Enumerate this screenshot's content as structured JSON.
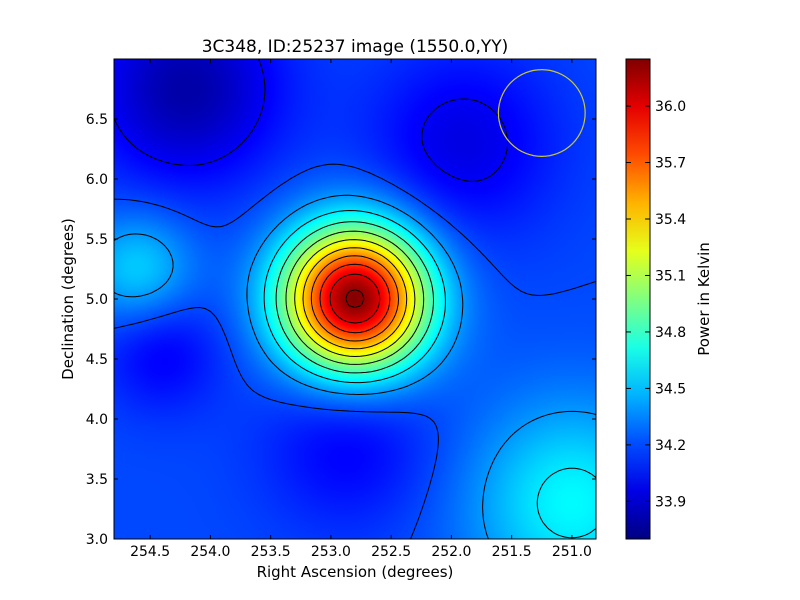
{
  "chart_data": {
    "type": "heatmap",
    "title": "3C348, ID:25237 image (1550.0,YY)",
    "xlabel": "Right Ascension (degrees)",
    "ylabel": "Declination (degrees)",
    "xlim": [
      254.8,
      250.8
    ],
    "ylim": [
      3.0,
      7.0
    ],
    "x_ticks": [
      254.5,
      254.0,
      253.5,
      253.0,
      252.5,
      252.0,
      251.5,
      251.0
    ],
    "x_tick_labels": [
      "254.5",
      "254.0",
      "253.5",
      "253.0",
      "252.5",
      "252.0",
      "251.5",
      "251.0"
    ],
    "y_ticks": [
      3.0,
      3.5,
      4.0,
      4.5,
      5.0,
      5.5,
      6.0,
      6.5
    ],
    "y_tick_labels": [
      "3.0",
      "3.5",
      "4.0",
      "4.5",
      "5.0",
      "5.5",
      "6.0",
      "6.5"
    ],
    "colorbar": {
      "label": "Power in Kelvin",
      "colormap": "jet",
      "range": [
        33.7,
        36.25
      ],
      "ticks": [
        33.9,
        34.2,
        34.5,
        34.8,
        35.1,
        35.4,
        35.7,
        36.0
      ],
      "tick_labels": [
        "33.9",
        "34.2",
        "34.5",
        "34.8",
        "35.1",
        "35.4",
        "35.7",
        "36.0"
      ]
    },
    "peak": {
      "ra": 252.8,
      "dec": 5.0,
      "value": 36.25
    },
    "features": [
      {
        "ra": 254.6,
        "dec": 5.25,
        "value": 34.55
      },
      {
        "ra": 252.85,
        "dec": 3.8,
        "value": 34.0
      },
      {
        "ra": 254.2,
        "dec": 6.75,
        "value": 33.8
      },
      {
        "ra": 251.9,
        "dec": 6.3,
        "value": 33.95
      },
      {
        "ra": 254.4,
        "dec": 4.55,
        "value": 34.0
      },
      {
        "ra": 251.0,
        "dec": 3.3,
        "value": 34.65
      }
    ],
    "contour_color": "#000000",
    "beam_marker": {
      "ra": 251.25,
      "dec": 6.55,
      "radius_deg": 0.36,
      "color": "#c8c83c"
    }
  }
}
